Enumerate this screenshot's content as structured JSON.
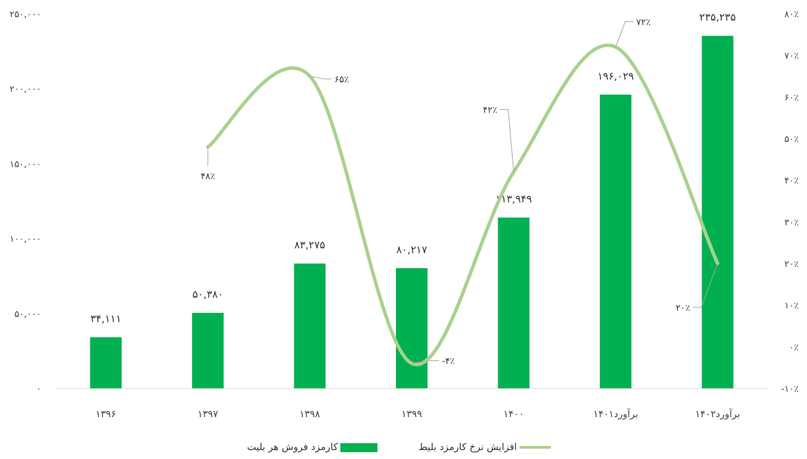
{
  "chart_data": {
    "type": "bar+line",
    "categories": [
      "۱۳۹۶",
      "۱۳۹۷",
      "۱۳۹۸",
      "۱۳۹۹",
      "۱۴۰۰",
      "۱۴۰۱برآورد",
      "۱۴۰۲برآورد"
    ],
    "series": [
      {
        "name": "کارمزد فروش هر بلیت",
        "type": "bar",
        "axis": "left",
        "color": "#00b050",
        "values": [
          34111,
          50380,
          83275,
          80217,
          113949,
          196029,
          235235
        ],
        "labels": [
          "۳۴,۱۱۱",
          "۵۰,۳۸۰",
          "۸۳,۲۷۵",
          "۸۰,۲۱۷",
          "۱۱۳,۹۴۹",
          "۱۹۶,۰۲۹",
          "۲۳۵,۲۳۵"
        ]
      },
      {
        "name": "افزایش نرخ کارمزد بلیط",
        "type": "line",
        "axis": "right",
        "smooth": true,
        "color": "#a9d18e",
        "points": [
          {
            "category_index": 1,
            "value": 48,
            "label": "۴۸٪"
          },
          {
            "category_index": 2,
            "value": 65,
            "label": "۶۵٪"
          },
          {
            "category_index": 3,
            "value": -4,
            "label": "-۴٪"
          },
          {
            "category_index": 4,
            "value": 42,
            "label": "۴۲٪"
          },
          {
            "category_index": 5,
            "value": 72,
            "label": "۷۲٪"
          },
          {
            "category_index": 6,
            "value": 20,
            "label": "۲۰٪"
          }
        ]
      }
    ],
    "y_left": {
      "ylim": [
        0,
        250000
      ],
      "ticks": [
        "۰",
        "۵۰,۰۰۰",
        "۱۰۰,۰۰۰",
        "۱۵۰,۰۰۰",
        "۲۰۰,۰۰۰",
        "۲۵۰,۰۰۰"
      ]
    },
    "y_right": {
      "ylim": [
        -10,
        80
      ],
      "ticks": [
        "-۱۰٪",
        "۰٪",
        "۱۰٪",
        "۲۰٪",
        "۳۰٪",
        "۴۰٪",
        "۵۰٪",
        "۶۰٪",
        "۷۰٪",
        "۸۰٪"
      ]
    },
    "grid": false,
    "legend_position": "bottom"
  }
}
